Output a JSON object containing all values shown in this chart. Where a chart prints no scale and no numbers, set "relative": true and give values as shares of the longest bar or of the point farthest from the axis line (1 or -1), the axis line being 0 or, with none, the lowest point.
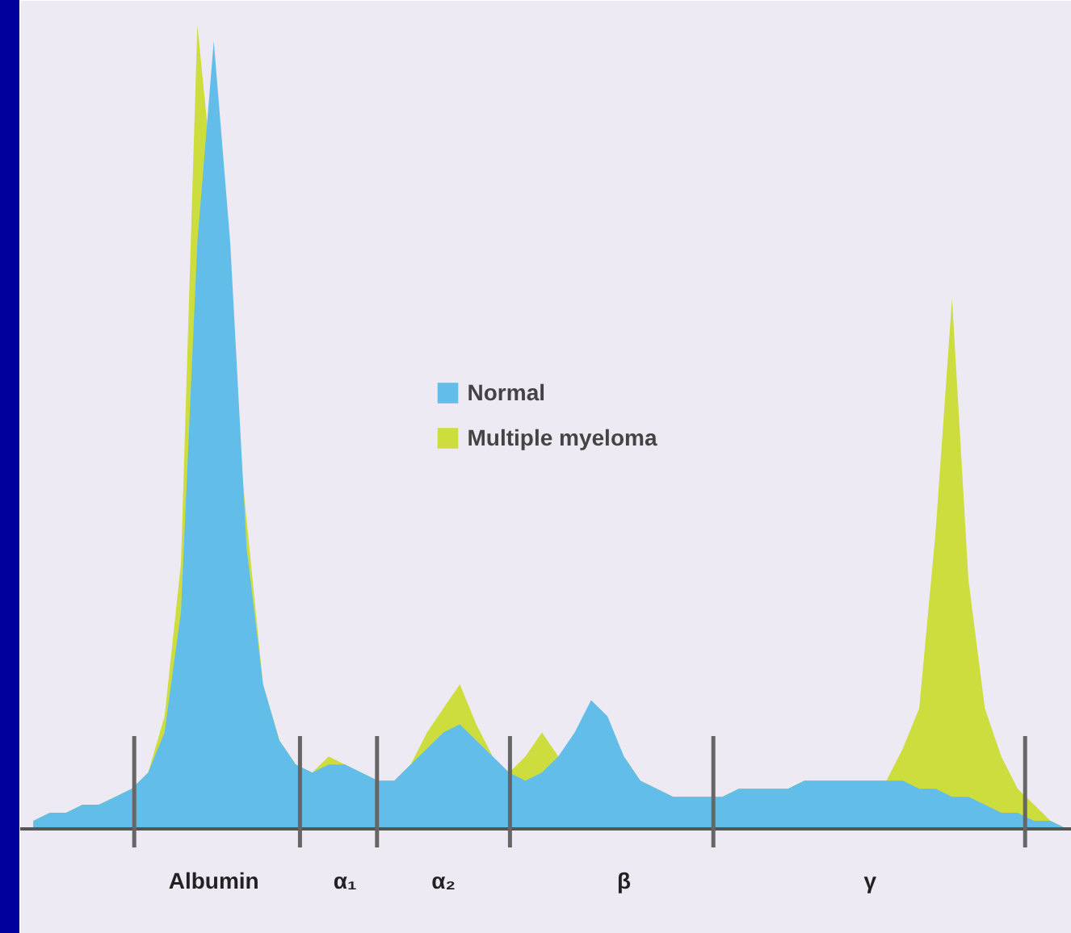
{
  "chart_data": {
    "type": "area",
    "relative": true,
    "categories": [
      null,
      null,
      null,
      null,
      null,
      null,
      null,
      null,
      null,
      null,
      null,
      "Albumin",
      null,
      null,
      null,
      null,
      null,
      null,
      null,
      "α₁",
      null,
      null,
      null,
      null,
      null,
      "α₂",
      null,
      null,
      null,
      null,
      null,
      null,
      null,
      null,
      null,
      null,
      "β",
      null,
      null,
      null,
      null,
      null,
      null,
      null,
      null,
      null,
      null,
      null,
      null,
      null,
      null,
      "γ",
      null,
      null,
      null,
      null,
      null,
      null,
      null,
      null,
      null,
      null,
      null,
      null
    ],
    "series": [
      {
        "name": "Multiple myeloma",
        "color": "#cddd3e",
        "values": [
          0.01,
          0.02,
          0.02,
          0.03,
          0.03,
          0.04,
          0.05,
          0.07,
          0.14,
          0.33,
          1.0,
          null,
          null,
          null,
          0.18,
          0.11,
          0.08,
          0.07,
          0.09,
          0.08,
          0.07,
          0.06,
          0.06,
          0.08,
          0.12,
          0.15,
          0.18,
          0.13,
          0.09,
          0.07,
          0.09,
          0.12,
          0.09,
          null,
          null,
          null,
          0.09,
          0.06,
          0.05,
          0.04,
          0.04,
          0.04,
          0.04,
          0.05,
          0.05,
          0.05,
          0.05,
          0.06,
          0.06,
          0.06,
          0.06,
          0.06,
          0.06,
          0.1,
          0.15,
          0.37,
          0.66,
          0.31,
          0.15,
          0.09,
          0.05,
          0.03,
          0.01,
          0
        ]
      },
      {
        "name": "Normal",
        "color": "#63bde9",
        "values": [
          0.01,
          0.02,
          0.02,
          0.03,
          0.03,
          0.04,
          0.05,
          0.07,
          0.12,
          0.27,
          0.73,
          0.98,
          0.73,
          0.35,
          0.18,
          0.11,
          0.08,
          0.07,
          0.08,
          0.08,
          0.07,
          0.06,
          0.06,
          0.08,
          0.1,
          0.12,
          0.13,
          0.11,
          0.09,
          0.07,
          0.06,
          0.07,
          0.09,
          0.12,
          0.16,
          0.14,
          0.09,
          0.06,
          0.05,
          0.04,
          0.04,
          0.04,
          0.04,
          0.05,
          0.05,
          0.05,
          0.05,
          0.06,
          0.06,
          0.06,
          0.06,
          0.06,
          0.06,
          0.06,
          0.05,
          0.05,
          0.04,
          0.04,
          0.03,
          0.02,
          0.02,
          0.01,
          0.01,
          0
        ]
      }
    ],
    "legend": "center",
    "grid": false
  }
}
